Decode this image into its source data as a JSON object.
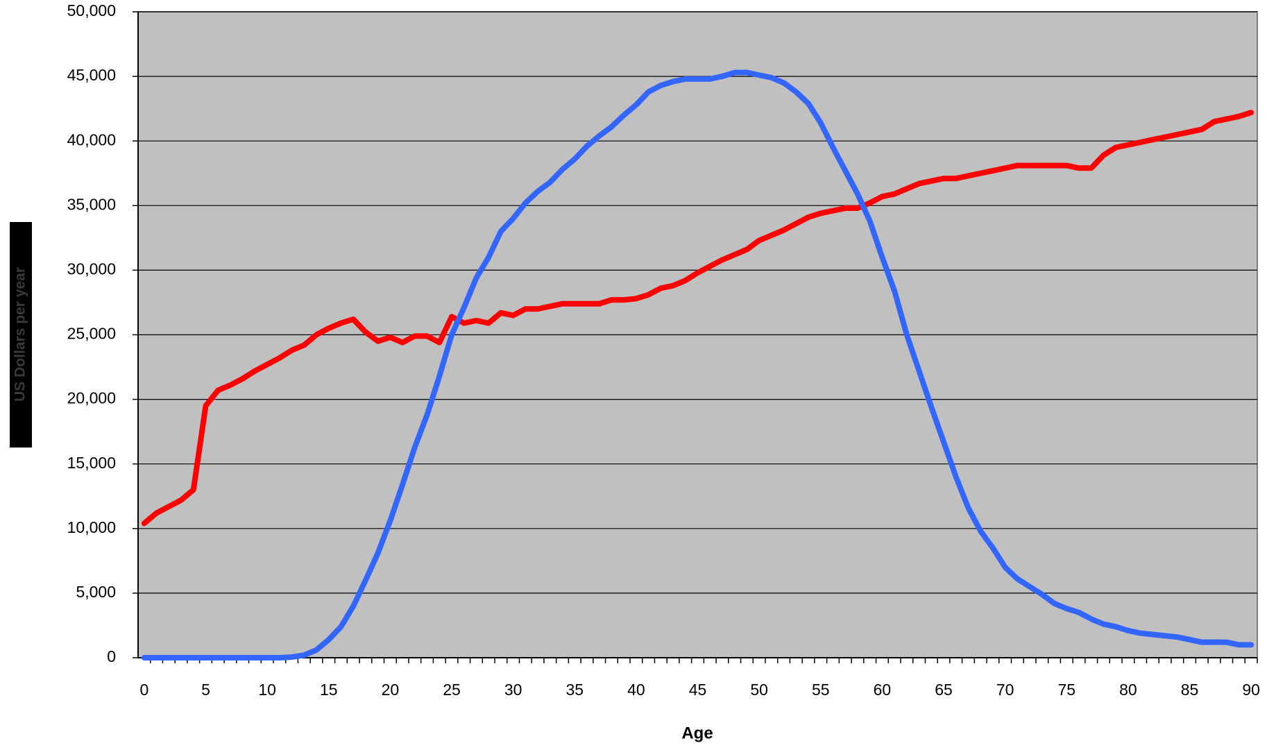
{
  "chart_data": {
    "type": "line",
    "x_label": "Age",
    "y_label": "US Dollars per year",
    "x": [
      0,
      1,
      2,
      3,
      4,
      5,
      6,
      7,
      8,
      9,
      10,
      11,
      12,
      13,
      14,
      15,
      16,
      17,
      18,
      19,
      20,
      21,
      22,
      23,
      24,
      25,
      26,
      27,
      28,
      29,
      30,
      31,
      32,
      33,
      34,
      35,
      36,
      37,
      38,
      39,
      40,
      41,
      42,
      43,
      44,
      45,
      46,
      47,
      48,
      49,
      50,
      51,
      52,
      53,
      54,
      55,
      56,
      57,
      58,
      59,
      60,
      61,
      62,
      63,
      64,
      65,
      66,
      67,
      68,
      69,
      70,
      71,
      72,
      73,
      74,
      75,
      76,
      77,
      78,
      79,
      80,
      81,
      82,
      83,
      84,
      85,
      86,
      87,
      88,
      89,
      90
    ],
    "series": [
      {
        "color": "#ff0000",
        "values": [
          10400,
          11200,
          11700,
          12200,
          13000,
          19500,
          20700,
          21100,
          21600,
          22200,
          22700,
          23200,
          23800,
          24200,
          25000,
          25500,
          25900,
          26200,
          25200,
          24500,
          24800,
          24400,
          24900,
          24900,
          24400,
          26400,
          25900,
          26100,
          25900,
          26700,
          26500,
          27000,
          27000,
          27200,
          27400,
          27400,
          27400,
          27400,
          27700,
          27700,
          27800,
          28100,
          28600,
          28800,
          29200,
          29800,
          30300,
          30800,
          31200,
          31600,
          32300,
          32700,
          33100,
          33600,
          34100,
          34400,
          34600,
          34800,
          34800,
          35200,
          35700,
          35900,
          36300,
          36700,
          36900,
          37100,
          37100,
          37300,
          37500,
          37700,
          37900,
          38100,
          38100,
          38100,
          38100,
          38100,
          37900,
          37900,
          38900,
          39500,
          39700,
          39900,
          40100,
          40300,
          40500,
          40700,
          40900,
          41500,
          41700,
          41900,
          42200
        ]
      },
      {
        "color": "#3366ff",
        "values": [
          0,
          0,
          0,
          0,
          0,
          0,
          0,
          0,
          0,
          0,
          0,
          0,
          50,
          200,
          600,
          1400,
          2400,
          4000,
          6000,
          8100,
          10600,
          13400,
          16300,
          18800,
          21800,
          25000,
          27100,
          29400,
          31000,
          33000,
          34000,
          35200,
          36100,
          36800,
          37800,
          38600,
          39600,
          40400,
          41100,
          42000,
          42800,
          43800,
          44300,
          44600,
          44800,
          44800,
          44800,
          45000,
          45300,
          45300,
          45100,
          44900,
          44500,
          43800,
          42900,
          41400,
          39500,
          37700,
          35900,
          33800,
          31000,
          28400,
          25000,
          22200,
          19400,
          16700,
          14000,
          11600,
          9800,
          8500,
          7000,
          6100,
          5500,
          4900,
          4200,
          3800,
          3500,
          3000,
          2600,
          2400,
          2100,
          1900,
          1800,
          1700,
          1600,
          1400,
          1200,
          1200,
          1200,
          1000,
          1000
        ]
      }
    ],
    "xlim": [
      -0.5,
      90.5
    ],
    "xticks": [
      0,
      5,
      10,
      15,
      20,
      25,
      30,
      35,
      40,
      45,
      50,
      55,
      60,
      65,
      70,
      75,
      80,
      85,
      90
    ],
    "ylim": [
      0,
      50000
    ],
    "yticks": [
      0,
      {
        "value": 5000,
        "label": "5,000"
      },
      {
        "value": 10000,
        "label": "10,000"
      },
      {
        "value": 15000,
        "label": "15,000"
      },
      {
        "value": 20000,
        "label": "20,000"
      },
      {
        "value": 25000,
        "label": "25,000"
      },
      {
        "value": 30000,
        "label": "30,000"
      },
      {
        "value": 35000,
        "label": "35,000"
      },
      {
        "value": 40000,
        "label": "40,000"
      },
      {
        "value": 45000,
        "label": "45,000"
      },
      {
        "value": 50000,
        "label": "50,000"
      }
    ],
    "grid": true,
    "plot_background": "#c0c0c0"
  }
}
